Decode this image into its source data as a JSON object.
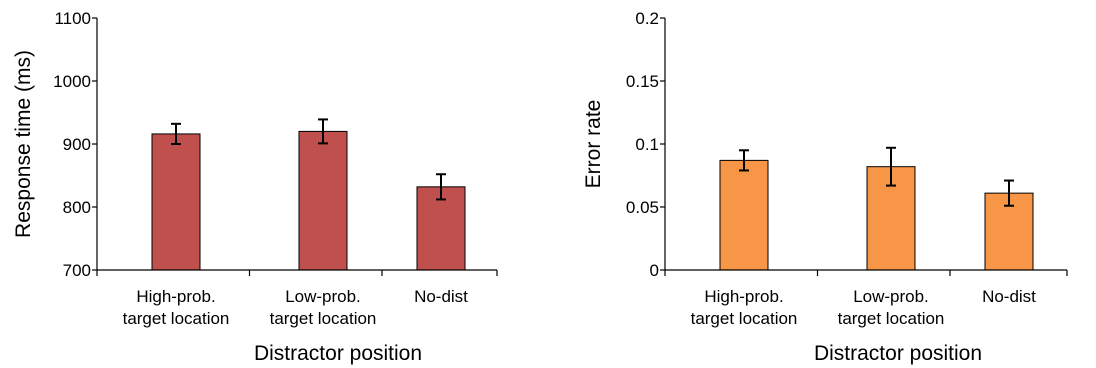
{
  "chart_data": [
    {
      "type": "bar",
      "categories": [
        [
          "High-prob.",
          "target location"
        ],
        [
          "Low-prob.",
          "target location"
        ],
        [
          "No-dist"
        ]
      ],
      "values": [
        916,
        920,
        832
      ],
      "error": [
        16,
        19,
        20
      ],
      "xlabel": "Distractor position",
      "ylabel": "Response time (ms)",
      "ylim": [
        700,
        1100
      ],
      "yticks": [
        "700",
        "800",
        "900",
        "1000",
        "1100"
      ],
      "bar_color": "#c0504d",
      "grid": false
    },
    {
      "type": "bar",
      "categories": [
        [
          "High-prob.",
          "target location"
        ],
        [
          "Low-prob.",
          "target location"
        ],
        [
          "No-dist"
        ]
      ],
      "values": [
        0.087,
        0.082,
        0.061
      ],
      "error": [
        0.008,
        0.015,
        0.01
      ],
      "xlabel": "Distractor position",
      "ylabel": "Error rate",
      "ylim": [
        0,
        0.2
      ],
      "yticks": [
        "0",
        "0.05",
        "0.1",
        "0.15",
        "0.2"
      ],
      "bar_color": "#f79646",
      "grid": false
    }
  ]
}
